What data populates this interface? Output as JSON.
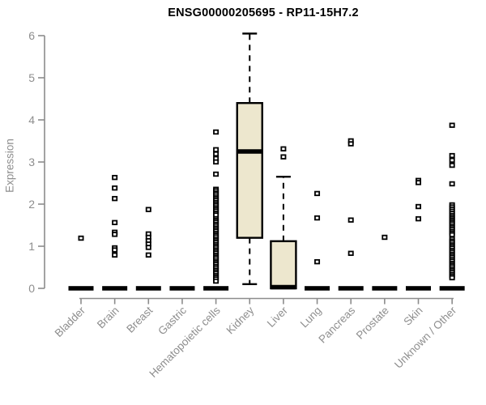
{
  "chart_data": {
    "type": "boxplot",
    "title": "ENSG00000205695 - RP11-15H7.2",
    "ylabel": "Expression",
    "xlabel": "",
    "ylim": [
      0,
      6
    ],
    "yticks": [
      0,
      1,
      2,
      3,
      4,
      5,
      6
    ],
    "grid": "off",
    "colors": {
      "box_fill": "#EDE7CE",
      "box_stroke": "#000000",
      "axis_color": "#8c8c8c",
      "tick_label_color": "#8e8e8e",
      "title_color": "#000000",
      "outlier_fill": "#ffffff",
      "outlier_stroke": "#000000"
    },
    "categories": [
      "Bladder",
      "Brain",
      "Breast",
      "Gastric",
      "Hematopoietic cells",
      "Kidney",
      "Liver",
      "Lung",
      "Pancreas",
      "Prostate",
      "Skin",
      "Unknown / Other"
    ],
    "boxes": [
      {
        "category": "Bladder",
        "min": 0,
        "q1": 0,
        "median": 0,
        "q3": 0,
        "max": 0,
        "outliers": [
          1.19
        ]
      },
      {
        "category": "Brain",
        "min": 0,
        "q1": 0,
        "median": 0,
        "q3": 0,
        "max": 0,
        "outliers": [
          2.63,
          2.38,
          2.13,
          1.56,
          1.33,
          1.28,
          0.96,
          0.91,
          0.79
        ]
      },
      {
        "category": "Breast",
        "min": 0,
        "q1": 0,
        "median": 0,
        "q3": 0,
        "max": 0,
        "outliers": [
          1.87,
          1.29,
          1.21,
          1.13,
          1.05,
          0.97,
          0.79
        ]
      },
      {
        "category": "Gastric",
        "min": 0,
        "q1": 0,
        "median": 0,
        "q3": 0,
        "max": 0,
        "outliers": []
      },
      {
        "category": "Hematopoietic cells",
        "min": 0,
        "q1": 0,
        "median": 0,
        "q3": 0,
        "max": 0,
        "outliers": [
          3.71,
          3.29,
          3.19,
          3.08,
          3.0,
          2.71,
          2.35,
          2.31,
          2.26,
          2.22,
          2.17,
          2.13,
          2.09,
          2.04,
          2.0,
          1.96,
          1.91,
          1.87,
          1.83,
          1.78,
          1.74,
          1.65,
          1.61,
          1.57,
          1.52,
          1.48,
          1.43,
          1.39,
          1.35,
          1.3,
          1.26,
          1.22,
          1.17,
          1.13,
          1.09,
          1.04,
          1.0,
          0.96,
          0.91,
          0.87,
          0.83,
          0.78,
          0.74,
          0.7,
          0.65,
          0.61,
          0.57,
          0.52,
          0.48,
          0.43,
          0.39,
          0.35,
          0.3,
          0.26,
          0.22,
          0.17
        ]
      },
      {
        "category": "Kidney",
        "min": 0.1,
        "q1": 1.2,
        "median": 3.25,
        "q3": 4.4,
        "max": 6.05,
        "outliers": []
      },
      {
        "category": "Liver",
        "min": 0,
        "q1": 0,
        "median": 0.03,
        "q3": 1.12,
        "max": 2.65,
        "outliers": [
          3.31,
          3.12
        ]
      },
      {
        "category": "Lung",
        "min": 0,
        "q1": 0,
        "median": 0,
        "q3": 0,
        "max": 0,
        "outliers": [
          2.25,
          1.67,
          0.63
        ]
      },
      {
        "category": "Pancreas",
        "min": 0,
        "q1": 0,
        "median": 0,
        "q3": 0,
        "max": 0,
        "outliers": [
          3.5,
          3.43,
          1.62,
          0.83
        ]
      },
      {
        "category": "Prostate",
        "min": 0,
        "q1": 0,
        "median": 0,
        "q3": 0,
        "max": 0,
        "outliers": [
          1.21
        ]
      },
      {
        "category": "Skin",
        "min": 0,
        "q1": 0,
        "median": 0,
        "q3": 0,
        "max": 0,
        "outliers": [
          2.56,
          2.51,
          1.94,
          1.65
        ]
      },
      {
        "category": "Unknown / Other",
        "min": 0,
        "q1": 0,
        "median": 0,
        "q3": 0,
        "max": 0,
        "outliers": [
          3.87,
          3.15,
          3.04,
          2.92,
          2.48,
          1.98,
          1.93,
          1.88,
          1.83,
          1.78,
          1.73,
          1.69,
          1.65,
          1.61,
          1.57,
          1.53,
          1.48,
          1.44,
          1.4,
          1.35,
          1.31,
          1.27,
          1.17,
          1.12,
          1.08,
          1.03,
          0.99,
          0.95,
          0.9,
          0.86,
          0.81,
          0.77,
          0.73,
          0.68,
          0.64,
          0.59,
          0.55,
          0.51,
          0.46,
          0.42,
          0.38,
          0.33,
          0.29,
          0.25
        ]
      }
    ]
  }
}
